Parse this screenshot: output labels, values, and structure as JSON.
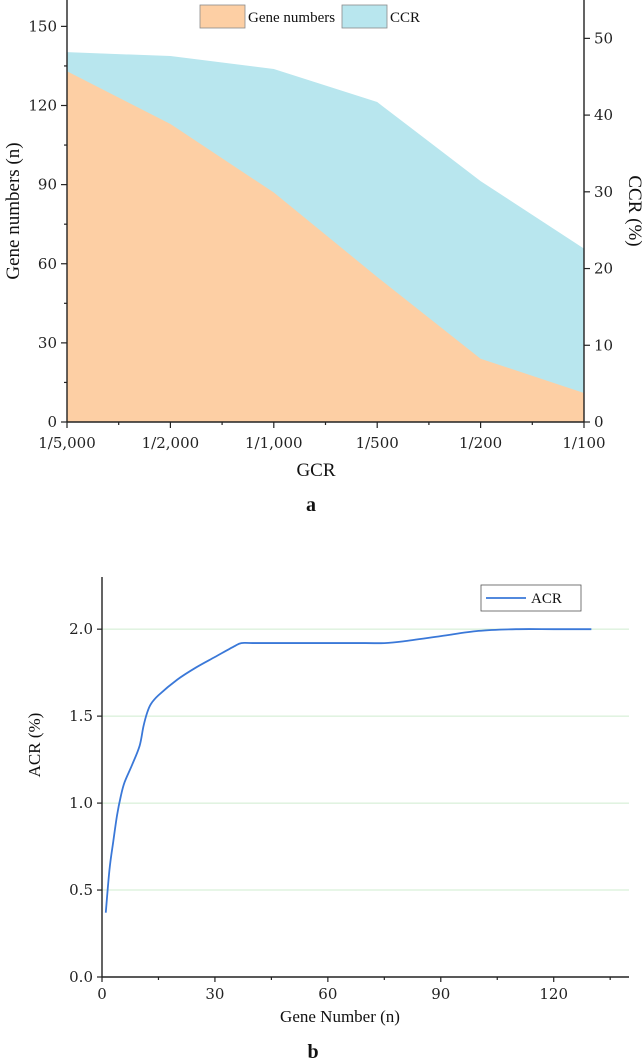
{
  "chart_data": [
    {
      "type": "area",
      "panel_label": "a",
      "xlabel": "GCR",
      "ylabel_left": "Gene numbers (n)",
      "ylabel_right": "CCR (%)",
      "categories": [
        "1/5,000",
        "1/2,000",
        "1/1,000",
        "1/500",
        "1/200",
        "1/100"
      ],
      "ylim_left": [
        0,
        160
      ],
      "yticks_left": [
        0,
        30,
        60,
        90,
        120,
        150
      ],
      "ylim_right": [
        0,
        55
      ],
      "yticks_right": [
        0,
        10,
        20,
        30,
        40,
        50
      ],
      "legend_position": "top-center",
      "series": [
        {
          "name": "Gene numbers",
          "axis": "left",
          "color": "#fdcfa4",
          "values": [
            133,
            113,
            87,
            55,
            24,
            11
          ]
        },
        {
          "name": "CCR",
          "axis": "right",
          "color": "#b8e6ee",
          "values": [
            48.2,
            47.7,
            46.0,
            41.7,
            31.4,
            22.6
          ]
        }
      ]
    },
    {
      "type": "line",
      "panel_label": "b",
      "xlabel": "Gene Number (n)",
      "ylabel": "ACR (%)",
      "xlim": [
        0,
        140
      ],
      "xticks": [
        0,
        30,
        60,
        90,
        120
      ],
      "ylim": [
        0,
        2.3
      ],
      "yticks": [
        0.0,
        0.5,
        1.0,
        1.5,
        2.0
      ],
      "ytick_labels": [
        "0.0",
        "0.5",
        "1.0",
        "1.5",
        "2.0"
      ],
      "grid": "horizontal",
      "legend_position": "top-right",
      "series": [
        {
          "name": "ACR",
          "color": "#3a78d8",
          "x": [
            1,
            2,
            3,
            4,
            5,
            6,
            8,
            10,
            11,
            12,
            13,
            15,
            20,
            25,
            30,
            35,
            37,
            40,
            50,
            60,
            70,
            75,
            80,
            90,
            100,
            110,
            120,
            130
          ],
          "y": [
            0.37,
            0.62,
            0.78,
            0.93,
            1.04,
            1.12,
            1.22,
            1.33,
            1.44,
            1.52,
            1.57,
            1.62,
            1.71,
            1.78,
            1.84,
            1.9,
            1.92,
            1.92,
            1.92,
            1.92,
            1.92,
            1.92,
            1.93,
            1.96,
            1.99,
            2.0,
            2.0,
            2.0
          ]
        }
      ]
    }
  ]
}
